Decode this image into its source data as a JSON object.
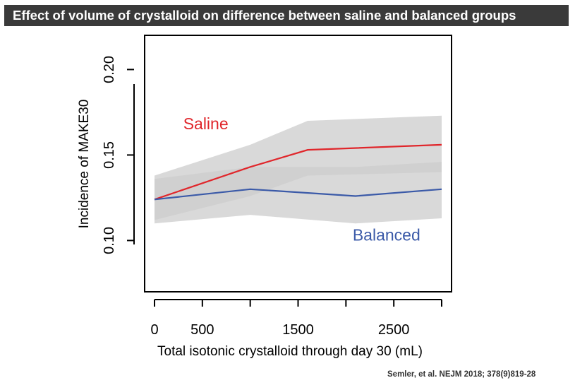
{
  "header": {
    "title": "Effect of volume of crystalloid on difference between saline and balanced groups"
  },
  "citation": "Semler, et al. NEJM 2018; 378(9)819-28",
  "colors": {
    "saline": "#e0262b",
    "balanced": "#3b5aa8",
    "band": "#cccccc",
    "title_bg": "#3a3a3a"
  },
  "chart_data": {
    "type": "line",
    "xlabel": "Total isotonic crystalloid through day 30 (mL)",
    "ylabel": "Incidence of MAKE30",
    "xlim": [
      0,
      3000
    ],
    "ylim": [
      0.07,
      0.22
    ],
    "x_ticks": [
      0,
      500,
      1000,
      1500,
      2000,
      2500,
      3000
    ],
    "x_tick_labels": [
      {
        "value": 0,
        "label": "0"
      },
      {
        "value": 500,
        "label": "500"
      },
      {
        "value": 1500,
        "label": "1500"
      },
      {
        "value": 2500,
        "label": "2500"
      }
    ],
    "y_ticks": [
      0.1,
      0.15,
      0.2
    ],
    "y_tick_labels": [
      "0.10",
      "0.15",
      "0.20"
    ],
    "grid": false,
    "series": [
      {
        "name": "Saline",
        "x": [
          0,
          1000,
          1600,
          3000
        ],
        "y": [
          0.124,
          0.143,
          0.153,
          0.156
        ],
        "band_upper": [
          0.138,
          0.156,
          0.17,
          0.173
        ],
        "band_lower": [
          0.112,
          0.126,
          0.138,
          0.14
        ]
      },
      {
        "name": "Balanced",
        "x": [
          0,
          1000,
          2100,
          3000
        ],
        "y": [
          0.124,
          0.13,
          0.126,
          0.13
        ],
        "band_upper": [
          0.136,
          0.143,
          0.143,
          0.146
        ],
        "band_lower": [
          0.11,
          0.115,
          0.11,
          0.113
        ]
      }
    ],
    "annotations": [
      {
        "text": "Saline",
        "series": "Saline",
        "x": 300,
        "y": 0.165
      },
      {
        "text": "Balanced",
        "series": "Balanced",
        "x": 2070,
        "y": 0.1
      }
    ]
  }
}
